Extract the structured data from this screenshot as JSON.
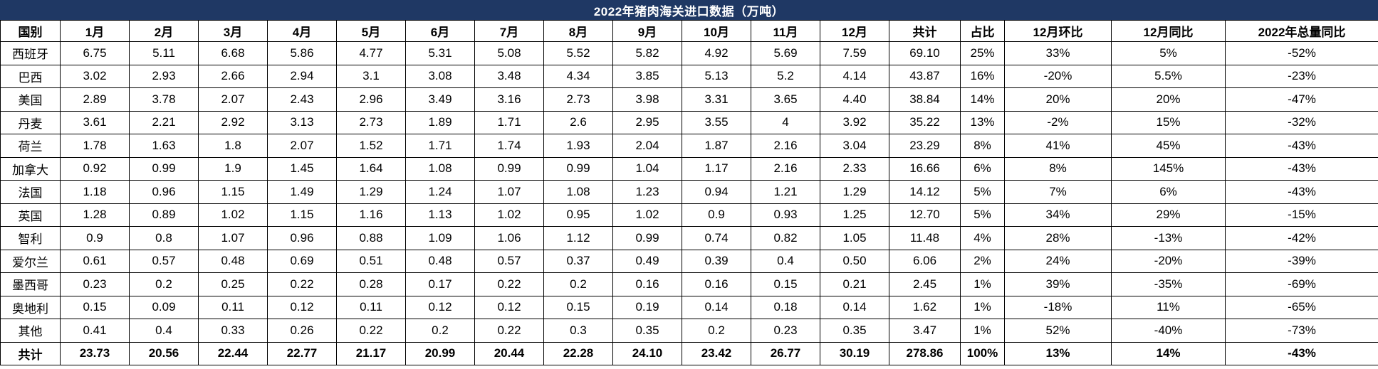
{
  "title": "2022年猪肉海关进口数据（万吨）",
  "colors": {
    "title_bg": "#1F3864",
    "title_text": "#FFFFFF",
    "border": "#000000",
    "body_bg": "#FFFFFF"
  },
  "chart_data": {
    "type": "table",
    "title": "2022年猪肉海关进口数据（万吨）",
    "columns": [
      "国别",
      "1月",
      "2月",
      "3月",
      "4月",
      "5月",
      "6月",
      "7月",
      "8月",
      "9月",
      "10月",
      "11月",
      "12月",
      "共计",
      "占比",
      "12月环比",
      "12月同比",
      "2022年总量同比"
    ],
    "rows": [
      {
        "country": "西班牙",
        "months": [
          "6.75",
          "5.11",
          "6.68",
          "5.86",
          "4.77",
          "5.31",
          "5.08",
          "5.52",
          "5.82",
          "4.92",
          "5.69",
          "7.59"
        ],
        "total": "69.10",
        "share": "25%",
        "dec_mom": "33%",
        "dec_yoy": "5%",
        "annual_yoy": "-52%"
      },
      {
        "country": "巴西",
        "months": [
          "3.02",
          "2.93",
          "2.66",
          "2.94",
          "3.1",
          "3.08",
          "3.48",
          "4.34",
          "3.85",
          "5.13",
          "5.2",
          "4.14"
        ],
        "total": "43.87",
        "share": "16%",
        "dec_mom": "-20%",
        "dec_yoy": "5.5%",
        "annual_yoy": "-23%"
      },
      {
        "country": "美国",
        "months": [
          "2.89",
          "3.78",
          "2.07",
          "2.43",
          "2.96",
          "3.49",
          "3.16",
          "2.73",
          "3.98",
          "3.31",
          "3.65",
          "4.40"
        ],
        "total": "38.84",
        "share": "14%",
        "dec_mom": "20%",
        "dec_yoy": "20%",
        "annual_yoy": "-47%"
      },
      {
        "country": "丹麦",
        "months": [
          "3.61",
          "2.21",
          "2.92",
          "3.13",
          "2.73",
          "1.89",
          "1.71",
          "2.6",
          "2.95",
          "3.55",
          "4",
          "3.92"
        ],
        "total": "35.22",
        "share": "13%",
        "dec_mom": "-2%",
        "dec_yoy": "15%",
        "annual_yoy": "-32%"
      },
      {
        "country": "荷兰",
        "months": [
          "1.78",
          "1.63",
          "1.8",
          "2.07",
          "1.52",
          "1.71",
          "1.74",
          "1.93",
          "2.04",
          "1.87",
          "2.16",
          "3.04"
        ],
        "total": "23.29",
        "share": "8%",
        "dec_mom": "41%",
        "dec_yoy": "45%",
        "annual_yoy": "-43%"
      },
      {
        "country": "加拿大",
        "months": [
          "0.92",
          "0.99",
          "1.9",
          "1.45",
          "1.64",
          "1.08",
          "0.99",
          "0.99",
          "1.04",
          "1.17",
          "2.16",
          "2.33"
        ],
        "total": "16.66",
        "share": "6%",
        "dec_mom": "8%",
        "dec_yoy": "145%",
        "annual_yoy": "-43%"
      },
      {
        "country": "法国",
        "months": [
          "1.18",
          "0.96",
          "1.15",
          "1.49",
          "1.29",
          "1.24",
          "1.07",
          "1.08",
          "1.23",
          "0.94",
          "1.21",
          "1.29"
        ],
        "total": "14.12",
        "share": "5%",
        "dec_mom": "7%",
        "dec_yoy": "6%",
        "annual_yoy": "-43%"
      },
      {
        "country": "英国",
        "months": [
          "1.28",
          "0.89",
          "1.02",
          "1.15",
          "1.16",
          "1.13",
          "1.02",
          "0.95",
          "1.02",
          "0.9",
          "0.93",
          "1.25"
        ],
        "total": "12.70",
        "share": "5%",
        "dec_mom": "34%",
        "dec_yoy": "29%",
        "annual_yoy": "-15%"
      },
      {
        "country": "智利",
        "months": [
          "0.9",
          "0.8",
          "1.07",
          "0.96",
          "0.88",
          "1.09",
          "1.06",
          "1.12",
          "0.99",
          "0.74",
          "0.82",
          "1.05"
        ],
        "total": "11.48",
        "share": "4%",
        "dec_mom": "28%",
        "dec_yoy": "-13%",
        "annual_yoy": "-42%"
      },
      {
        "country": "爱尔兰",
        "months": [
          "0.61",
          "0.57",
          "0.48",
          "0.69",
          "0.51",
          "0.48",
          "0.57",
          "0.37",
          "0.49",
          "0.39",
          "0.4",
          "0.50"
        ],
        "total": "6.06",
        "share": "2%",
        "dec_mom": "24%",
        "dec_yoy": "-20%",
        "annual_yoy": "-39%"
      },
      {
        "country": "墨西哥",
        "months": [
          "0.23",
          "0.2",
          "0.25",
          "0.22",
          "0.28",
          "0.17",
          "0.22",
          "0.2",
          "0.16",
          "0.16",
          "0.15",
          "0.21"
        ],
        "total": "2.45",
        "share": "1%",
        "dec_mom": "39%",
        "dec_yoy": "-35%",
        "annual_yoy": "-69%"
      },
      {
        "country": "奥地利",
        "months": [
          "0.15",
          "0.09",
          "0.11",
          "0.12",
          "0.11",
          "0.12",
          "0.12",
          "0.15",
          "0.19",
          "0.14",
          "0.18",
          "0.14"
        ],
        "total": "1.62",
        "share": "1%",
        "dec_mom": "-18%",
        "dec_yoy": "11%",
        "annual_yoy": "-65%"
      },
      {
        "country": "其他",
        "months": [
          "0.41",
          "0.4",
          "0.33",
          "0.26",
          "0.22",
          "0.2",
          "0.22",
          "0.3",
          "0.35",
          "0.2",
          "0.23",
          "0.35"
        ],
        "total": "3.47",
        "share": "1%",
        "dec_mom": "52%",
        "dec_yoy": "-40%",
        "annual_yoy": "-73%"
      }
    ],
    "total_row": {
      "country": "共计",
      "months": [
        "23.73",
        "20.56",
        "22.44",
        "22.77",
        "21.17",
        "20.99",
        "20.44",
        "22.28",
        "24.10",
        "23.42",
        "26.77",
        "30.19"
      ],
      "total": "278.86",
      "share": "100%",
      "dec_mom": "13%",
      "dec_yoy": "14%",
      "annual_yoy": "-43%"
    }
  }
}
